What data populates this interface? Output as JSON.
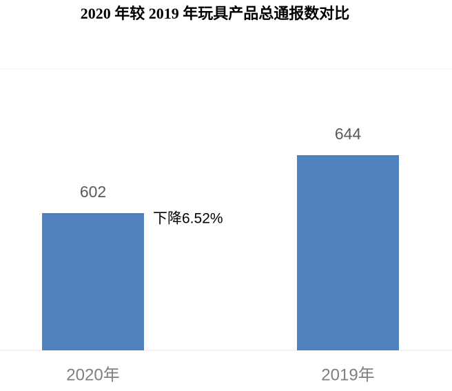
{
  "chart_data": {
    "type": "bar",
    "title": "2020 年较 2019 年玩具产品总通报数对比",
    "categories": [
      "2020年",
      "2019年"
    ],
    "values": [
      602,
      644
    ],
    "color": "#4f81bd",
    "ylim": [
      502.5,
      706.5
    ],
    "annotation": "下降6.52%"
  }
}
